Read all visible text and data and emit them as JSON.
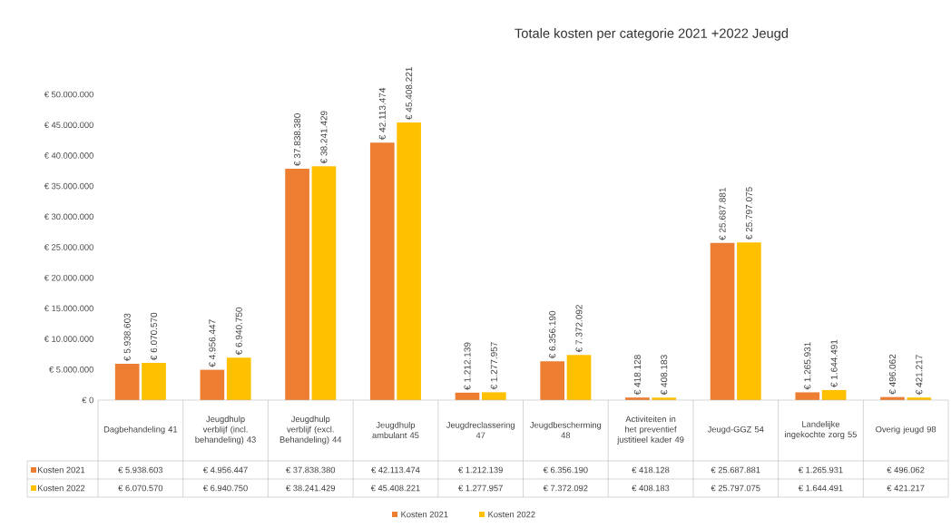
{
  "chart_data": {
    "type": "bar",
    "title": "Totale kosten per categorie 2021 +2022 Jeugd",
    "categories": [
      "Dagbehandeling 41",
      "Jeugdhulp verblijf (incl. behandeling) 43",
      "Jeugdhulp verblijf (excl. Behandeling) 44",
      "Jeugdhulp ambulant 45",
      "Jeugdreclassering 47",
      "Jeugdbescherming 48",
      "Activiteiten in het preventief justitieel kader 49",
      "Jeugd-GGZ 54",
      "Landelijke ingekochte zorg 55",
      "Overig jeugd 98"
    ],
    "series": [
      {
        "name": "Kosten 2021",
        "color": "#ed7d31",
        "values": [
          5938603,
          4956447,
          37838380,
          42113474,
          1212139,
          6356190,
          418128,
          25687881,
          1265931,
          496062
        ],
        "value_labels": [
          "€ 5.938.603",
          "€ 4.956.447",
          "€ 37.838.380",
          "€ 42.113.474",
          "€ 1.212.139",
          "€ 6.356.190",
          "€ 418.128",
          "€ 25.687.881",
          "€ 1.265.931",
          "€ 496.062"
        ]
      },
      {
        "name": "Kosten 2022",
        "color": "#ffc000",
        "values": [
          6070570,
          6940750,
          38241429,
          45408221,
          1277957,
          7372092,
          408183,
          25797075,
          1644491,
          421217
        ],
        "value_labels": [
          "€ 6.070.570",
          "€ 6.940.750",
          "€ 38.241.429",
          "€ 45.408.221",
          "€ 1.277.957",
          "€ 7.372.092",
          "€ 408.183",
          "€ 25.797.075",
          "€ 1.644.491",
          "€ 421.217"
        ]
      }
    ],
    "ylim": [
      0,
      50000000
    ],
    "yticks": [
      {
        "value": 0,
        "label": "€ 0"
      },
      {
        "value": 5000000,
        "label": "€ 5.000.000"
      },
      {
        "value": 10000000,
        "label": "€ 10.000.000"
      },
      {
        "value": 15000000,
        "label": "€ 15.000.000"
      },
      {
        "value": 20000000,
        "label": "€ 20.000.000"
      },
      {
        "value": 25000000,
        "label": "€ 25.000.000"
      },
      {
        "value": 30000000,
        "label": "€ 30.000.000"
      },
      {
        "value": 35000000,
        "label": "€ 35.000.000"
      },
      {
        "value": 40000000,
        "label": "€ 40.000.000"
      },
      {
        "value": 45000000,
        "label": "€ 45.000.000"
      },
      {
        "value": 50000000,
        "label": "€ 50.000.000"
      }
    ],
    "legend": "bottom"
  }
}
